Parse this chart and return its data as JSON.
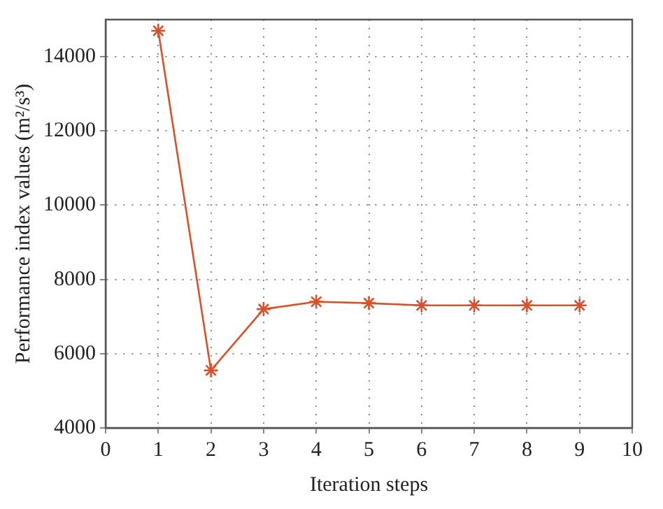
{
  "chart_data": {
    "type": "line",
    "xlabel": "Iteration steps",
    "ylabel": "Performance index values (m²/s³)",
    "x": [
      1,
      2,
      3,
      4,
      5,
      6,
      7,
      8,
      9
    ],
    "series": [
      {
        "color": "#d9502a",
        "values": [
          14700,
          5550,
          7200,
          7400,
          7360,
          7300,
          7300,
          7300,
          7300
        ]
      }
    ],
    "xlim": [
      0,
      10
    ],
    "xticks": [
      0,
      1,
      2,
      3,
      4,
      5,
      6,
      7,
      8,
      9,
      10
    ],
    "ylim": [
      4000,
      15000
    ],
    "yticks": [
      4000,
      6000,
      8000,
      10000,
      12000,
      14000
    ],
    "grid": true,
    "legend": false,
    "marker": "cross",
    "line_style": "solid"
  }
}
